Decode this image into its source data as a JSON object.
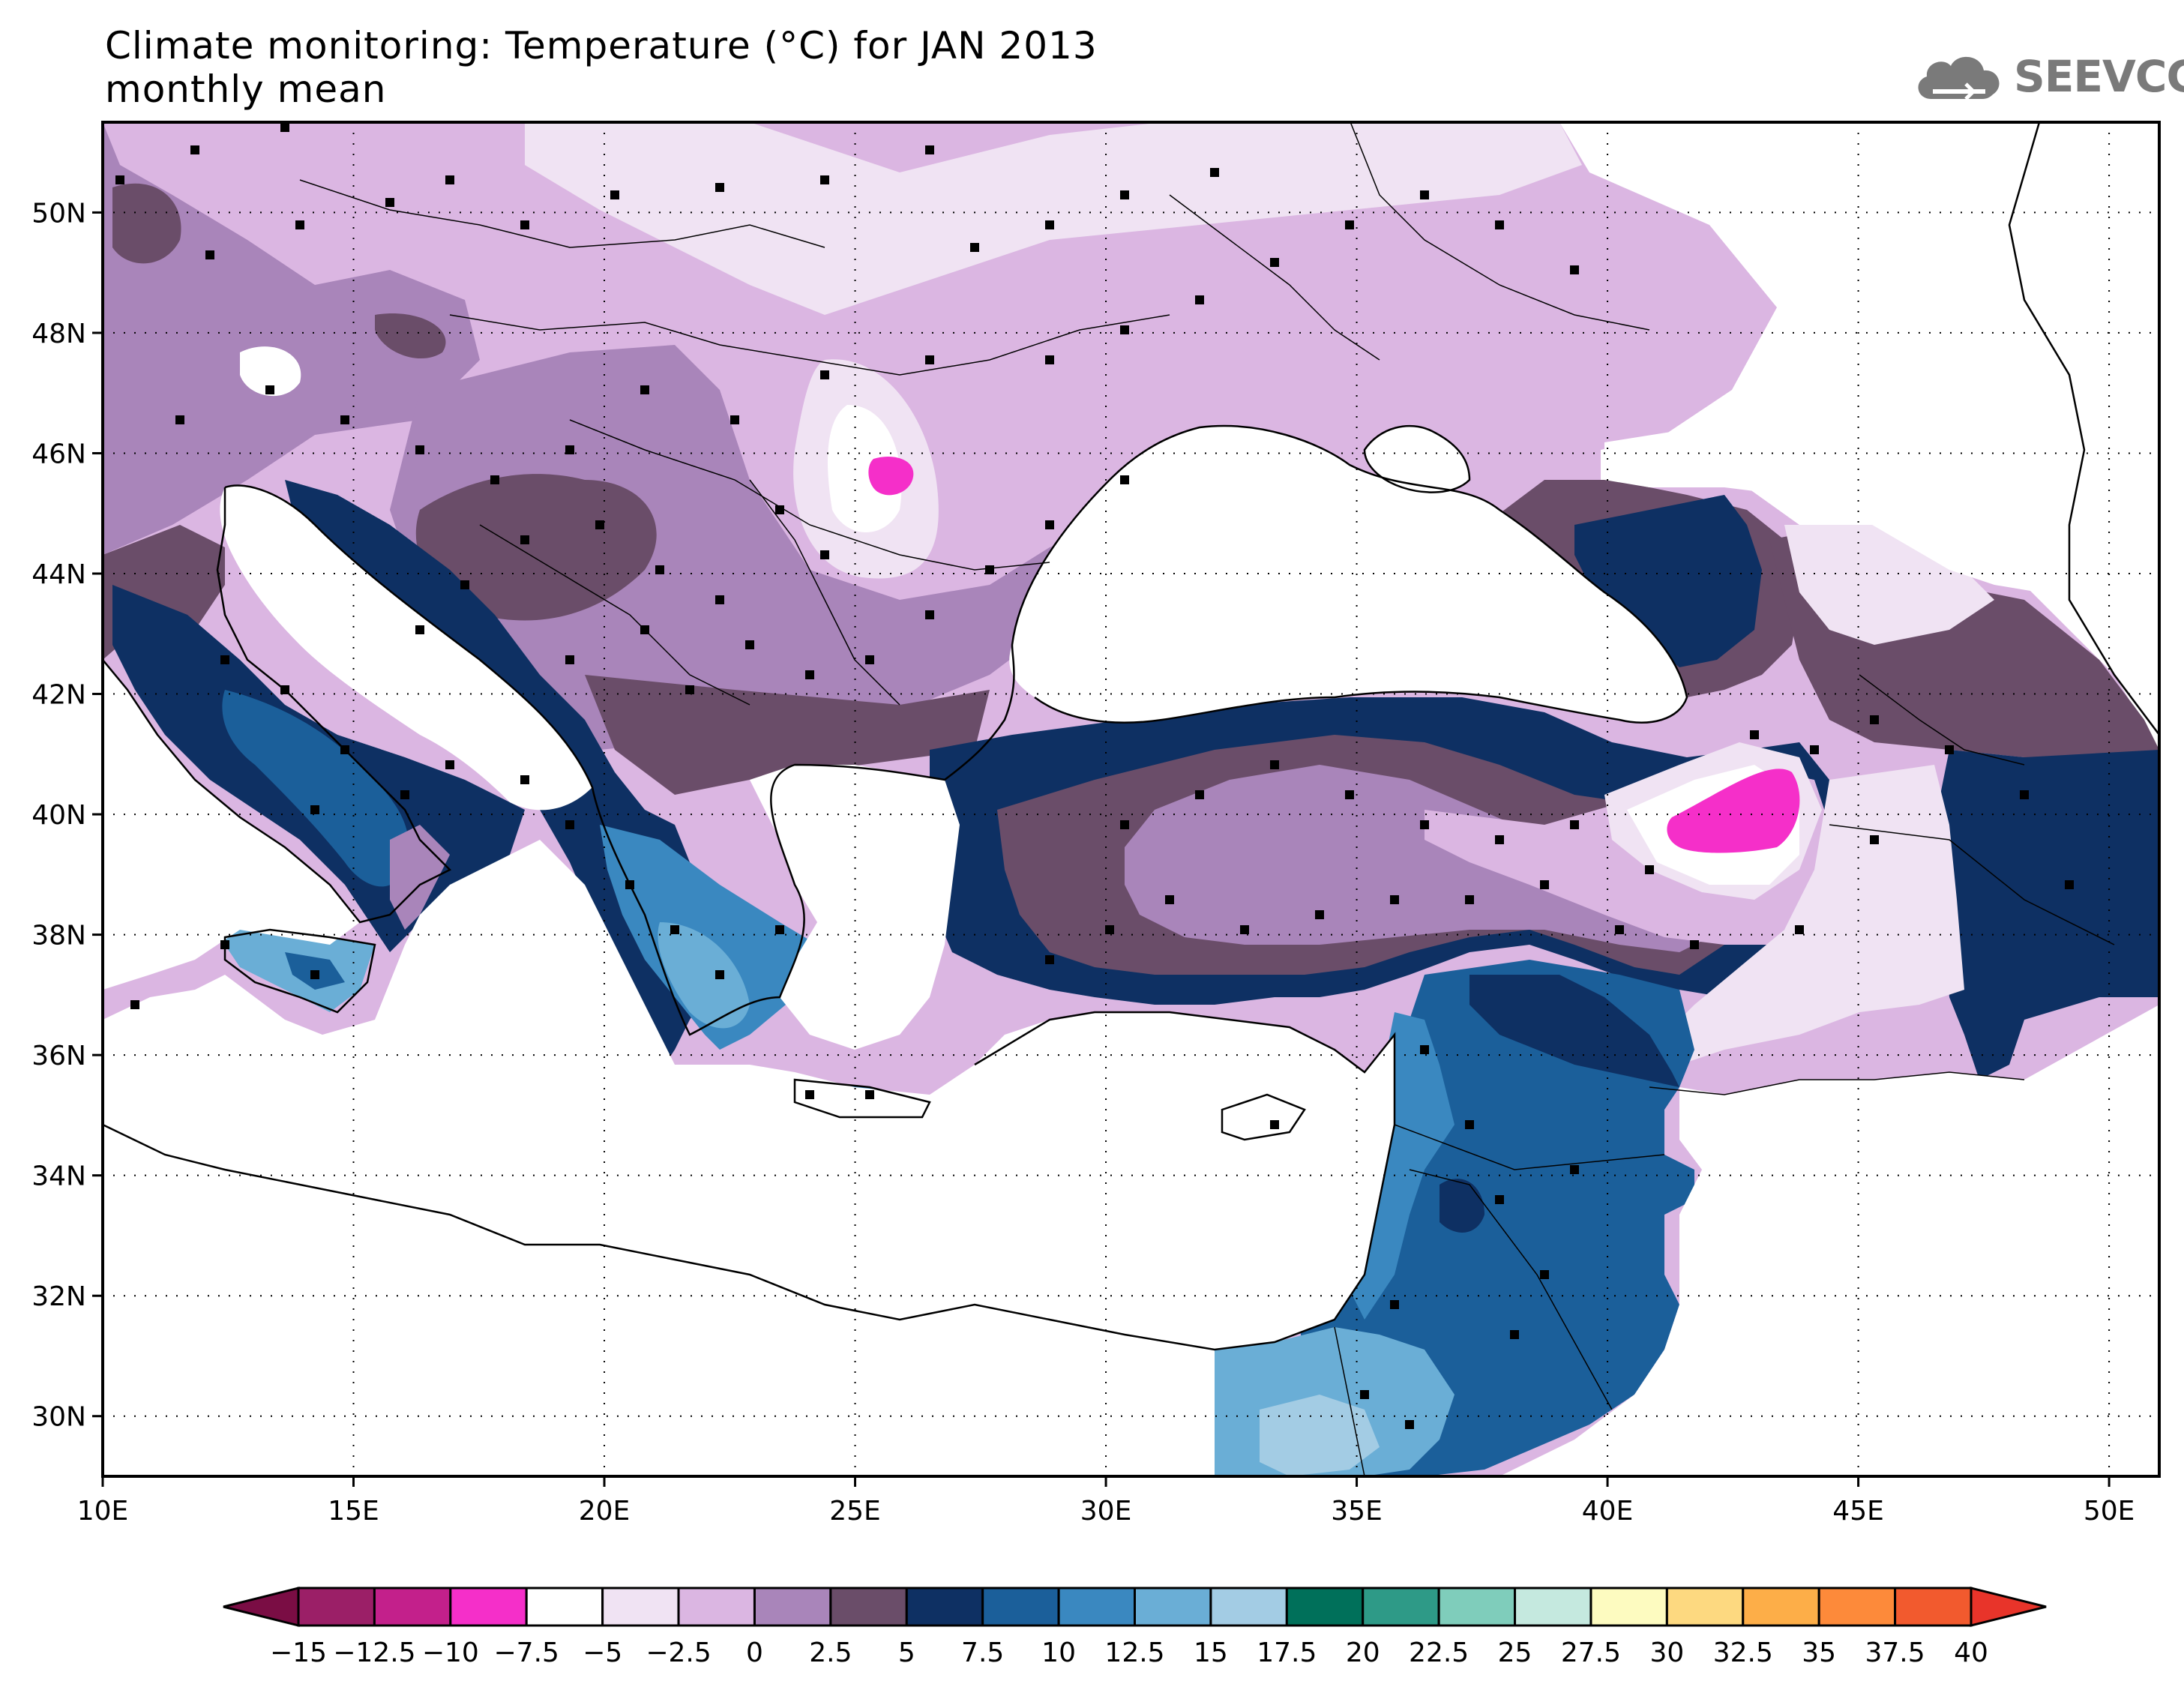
{
  "title": {
    "line1": "Climate monitoring: Temperature (°C) for JAN 2013",
    "line2": "monthly mean"
  },
  "logo": {
    "text": "SEEVCCC",
    "icon": "cloud-icon"
  },
  "map": {
    "lon_range": [
      10,
      51
    ],
    "lat_range": [
      29,
      51.5
    ],
    "lon_ticks": [
      {
        "v": 10,
        "label": "10E"
      },
      {
        "v": 15,
        "label": "15E"
      },
      {
        "v": 20,
        "label": "20E"
      },
      {
        "v": 25,
        "label": "25E"
      },
      {
        "v": 30,
        "label": "30E"
      },
      {
        "v": 35,
        "label": "35E"
      },
      {
        "v": 40,
        "label": "40E"
      },
      {
        "v": 45,
        "label": "45E"
      },
      {
        "v": 50,
        "label": "50E"
      }
    ],
    "lat_ticks": [
      {
        "v": 30,
        "label": "30N"
      },
      {
        "v": 32,
        "label": "32N"
      },
      {
        "v": 34,
        "label": "34N"
      },
      {
        "v": 36,
        "label": "36N"
      },
      {
        "v": 38,
        "label": "38N"
      },
      {
        "v": 40,
        "label": "40N"
      },
      {
        "v": 42,
        "label": "42N"
      },
      {
        "v": 44,
        "label": "44N"
      },
      {
        "v": 46,
        "label": "46N"
      },
      {
        "v": 48,
        "label": "48N"
      },
      {
        "v": 50,
        "label": "50N"
      }
    ],
    "grid": "dotted"
  },
  "colorbar": {
    "labels": [
      "-15",
      "-12.5",
      "-10",
      "-7.5",
      "-5",
      "-2.5",
      "0",
      "2.5",
      "5",
      "7.5",
      "10",
      "12.5",
      "15",
      "17.5",
      "20",
      "22.5",
      "25",
      "27.5",
      "30",
      "32.5",
      "35",
      "37.5",
      "40"
    ],
    "low_color": "#7a0d44",
    "high_color": "#e8342a",
    "colors": [
      "#9b1f67",
      "#c3208b",
      "#f52fc9",
      "#ffffff",
      "#f0e3f3",
      "#dbb6e2",
      "#a985ba",
      "#6a4d69",
      "#0e3063",
      "#1b5f9a",
      "#3a88c0",
      "#6aaed6",
      "#a3cce4",
      "#00705a",
      "#2e9a87",
      "#7fcdbb",
      "#c5e9df",
      "#fdfbc0",
      "#fdd980",
      "#fdae48",
      "#fd8a3a",
      "#f25a2e"
    ]
  },
  "stations_marker": "black square"
}
